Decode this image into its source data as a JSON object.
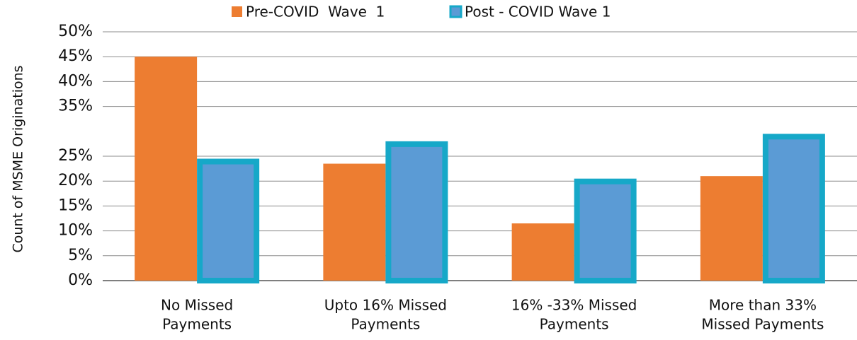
{
  "chart_data": {
    "type": "bar",
    "y_axis_label": "Count of MSME Originations",
    "categories": [
      [
        "No Missed",
        "Payments"
      ],
      [
        "Upto 16% Missed",
        "Payments"
      ],
      [
        "16% -33% Missed",
        "Payments"
      ],
      [
        "More than 33%",
        "Missed Payments"
      ]
    ],
    "series": [
      {
        "name": "Pre-COVID  Wave  1",
        "color": "#ed7d31",
        "values": [
          45,
          23.5,
          11.5,
          21
        ]
      },
      {
        "name": "Post - COVID Wave 1",
        "color": "#5b9bd5",
        "border": "#16a8c8",
        "values": [
          24.5,
          28,
          20.5,
          29.5
        ]
      }
    ],
    "ylim": [
      0,
      50
    ],
    "yticks": [
      {
        "value": 0,
        "label": "0%"
      },
      {
        "value": 5,
        "label": "5%"
      },
      {
        "value": 10,
        "label": "10%"
      },
      {
        "value": 15,
        "label": "15%"
      },
      {
        "value": 20,
        "label": "20%"
      },
      {
        "value": 25,
        "label": "25%"
      },
      {
        "value": 35,
        "label": "35%"
      },
      {
        "value": 40,
        "label": "40%"
      },
      {
        "value": 45,
        "label": "45%"
      },
      {
        "value": 50,
        "label": "50%"
      }
    ],
    "grid": true
  }
}
